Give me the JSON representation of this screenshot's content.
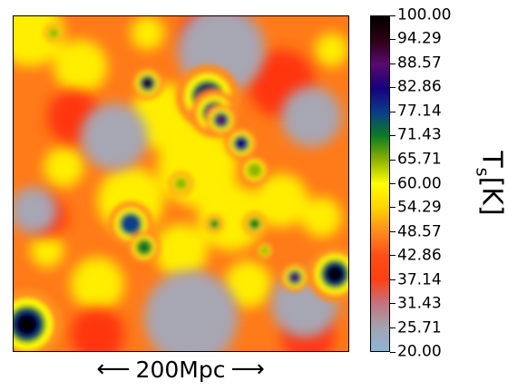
{
  "chart_data": {
    "type": "heatmap",
    "scale_bar": {
      "label": "200Mpc"
    },
    "colorbar": {
      "label_main": "T",
      "label_sub": "s",
      "label_unit": "[K]",
      "min": 20.0,
      "max": 100.0,
      "ticks": [
        "100.00",
        "94.29",
        "88.57",
        "82.86",
        "77.14",
        "71.43",
        "65.71",
        "60.00",
        "54.29",
        "48.57",
        "42.86",
        "37.14",
        "31.43",
        "25.71",
        "20.00"
      ],
      "colors": [
        "#8fb4d6",
        "#a3a3ae",
        "#c4727e",
        "#ff3f12",
        "#ff4f16",
        "#ff8c1e",
        "#ffd400",
        "#ffff00",
        "#8db200",
        "#0c7b22",
        "#0a3d8a",
        "#17007e",
        "#5a0a6e",
        "#2c0012",
        "#000000"
      ]
    },
    "features": {
      "cold_regions": [
        {
          "cx": 0.3,
          "cy": 0.36,
          "r": 0.1
        },
        {
          "cx": 0.62,
          "cy": 0.1,
          "r": 0.13
        },
        {
          "cx": 0.89,
          "cy": 0.3,
          "r": 0.09
        },
        {
          "cx": 0.53,
          "cy": 0.9,
          "r": 0.14
        },
        {
          "cx": 0.87,
          "cy": 0.86,
          "r": 0.1
        },
        {
          "cx": 0.06,
          "cy": 0.58,
          "r": 0.07
        }
      ],
      "hot_spots": [
        {
          "cx": 0.58,
          "cy": 0.24,
          "r": 0.04,
          "level": 100
        },
        {
          "cx": 0.6,
          "cy": 0.29,
          "r": 0.03,
          "level": 94
        },
        {
          "cx": 0.62,
          "cy": 0.31,
          "r": 0.02,
          "level": 88
        },
        {
          "cx": 0.68,
          "cy": 0.38,
          "r": 0.02,
          "level": 82
        },
        {
          "cx": 0.72,
          "cy": 0.46,
          "r": 0.018,
          "level": 66
        },
        {
          "cx": 0.04,
          "cy": 0.92,
          "r": 0.045,
          "level": 100
        },
        {
          "cx": 0.96,
          "cy": 0.77,
          "r": 0.035,
          "level": 100
        },
        {
          "cx": 0.4,
          "cy": 0.2,
          "r": 0.02,
          "level": 94
        },
        {
          "cx": 0.84,
          "cy": 0.78,
          "r": 0.018,
          "level": 88
        },
        {
          "cx": 0.35,
          "cy": 0.62,
          "r": 0.028,
          "level": 77
        },
        {
          "cx": 0.39,
          "cy": 0.69,
          "r": 0.02,
          "level": 71
        },
        {
          "cx": 0.12,
          "cy": 0.05,
          "r": 0.012,
          "level": 66
        },
        {
          "cx": 0.5,
          "cy": 0.5,
          "r": 0.015,
          "level": 66
        },
        {
          "cx": 0.72,
          "cy": 0.62,
          "r": 0.015,
          "level": 71
        },
        {
          "cx": 0.6,
          "cy": 0.62,
          "r": 0.012,
          "level": 71
        },
        {
          "cx": 0.75,
          "cy": 0.7,
          "r": 0.01,
          "level": 66
        }
      ]
    }
  }
}
